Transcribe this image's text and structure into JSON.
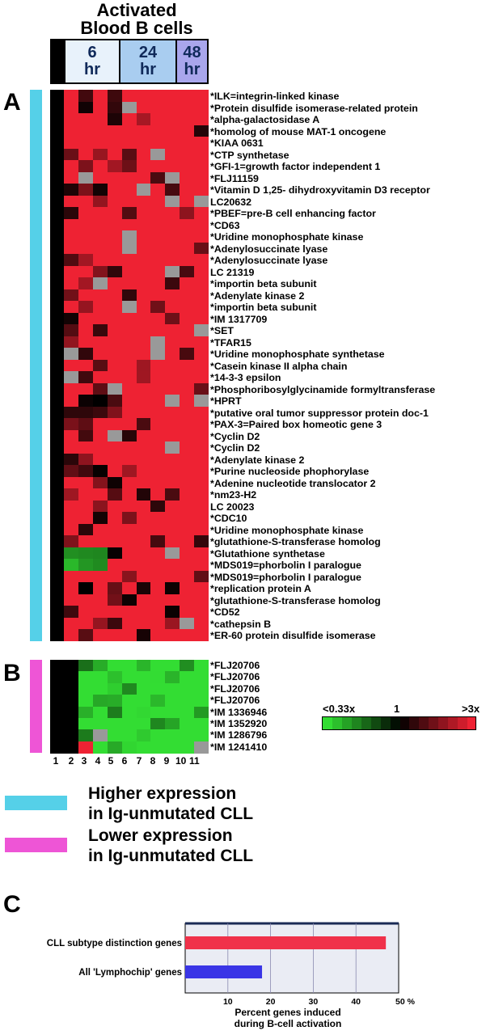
{
  "header": {
    "title_line1": "Activated",
    "title_line2": "Blood B cells"
  },
  "timepoints": [
    {
      "value": "6",
      "unit": "hr",
      "color": "#e8f2fb"
    },
    {
      "value": "24",
      "unit": "hr",
      "color": "#a9cdf0"
    },
    {
      "value": "48",
      "unit": "hr",
      "color": "#a9a6ec"
    }
  ],
  "panels": {
    "a": "A",
    "b": "B",
    "c": "C"
  },
  "colors": {
    "higher_bar": "#55d0e8",
    "lower_bar": "#ee55d6",
    "red": "#ee2233",
    "green": "#33dd33",
    "missing": "#999999",
    "chart_red": "#f0314a",
    "chart_blue": "#3a35e6"
  },
  "genes_a": [
    "*ILK=integrin-linked kinase",
    "*Protein disulfide isomerase-related protein",
    "*alpha-galactosidase A",
    "*homolog of mouse MAT-1 oncogene",
    "*KIAA 0631",
    "*CTP synthetase",
    "*GFI-1=growth factor independent 1",
    "*FLJ11159",
    "*Vitamin D 1,25- dihydroxyvitamin D3 receptor",
    " LC20632",
    "*PBEF=pre-B cell enhancing factor",
    "*CD63",
    "*Uridine monophosphate kinase",
    "*Adenylosuccinate lyase",
    "*Adenylosuccinate lyase",
    " LC 21319",
    "*importin beta subunit",
    "*Adenylate kinase 2",
    "*importin beta subunit",
    "*IM 1317709",
    "*SET",
    "*TFAR15",
    "*Uridine monophosphate synthetase",
    "*Casein kinase II alpha chain",
    "*14-3-3 epsilon",
    "*Phosphoribosylglycinamide formyltransferase",
    "*HPRT",
    "*putative oral tumor suppressor protein doc-1",
    "*PAX-3=Paired box homeotic gene 3",
    "*Cyclin D2",
    "*Cyclin D2",
    "*Adenylate kinase 2",
    "*Purine nucleoside phophorylase",
    "*Adenine nucleotide translocator 2",
    "*nm23-H2",
    " LC 20023",
    "*CDC10",
    "*Uridine monophosphate kinase",
    "*glutathione-S-transferase homolog",
    "*Glutathione synthetase",
    "*MDS019=phorbolin I paralogue",
    "*MDS019=phorbolin I paralogue",
    "*replication protein A",
    "*glutathione-S-transferase homolog",
    "*CD52",
    "*cathepsin B",
    "*ER-60 protein disulfide isomerase"
  ],
  "genes_b": [
    "*FLJ20706",
    "*FLJ20706",
    "*FLJ20706",
    "*FLJ20706",
    "*IM 1336946",
    "*IM 1352920",
    "*IM 1286796",
    "*IM 1241410"
  ],
  "column_labels": [
    "1",
    "2",
    "3",
    "4",
    "5",
    "6",
    "7",
    "8",
    "9",
    "10",
    "11"
  ],
  "scale": {
    "low": "<0.33x",
    "mid": "1",
    "high": ">3x"
  },
  "legend": {
    "higher_line1": "Higher expression",
    "higher_line2": "in Ig-unmutated CLL",
    "lower_line1": "Lower expression",
    "lower_line2": "in Ig-unmutated CLL"
  },
  "chart_data": {
    "type": "bar",
    "orientation": "horizontal",
    "categories": [
      "CLL subtype distinction genes",
      "All 'Lymphochip' genes"
    ],
    "values": [
      47,
      18
    ],
    "colors": [
      "#f0314a",
      "#3a35e6"
    ],
    "xlim": [
      0,
      50
    ],
    "xticks": [
      "10",
      "20",
      "30",
      "40",
      "50 %"
    ],
    "xlabel_line1": "Percent genes induced",
    "xlabel_line2": "during B-cell activation",
    "grid": true
  }
}
